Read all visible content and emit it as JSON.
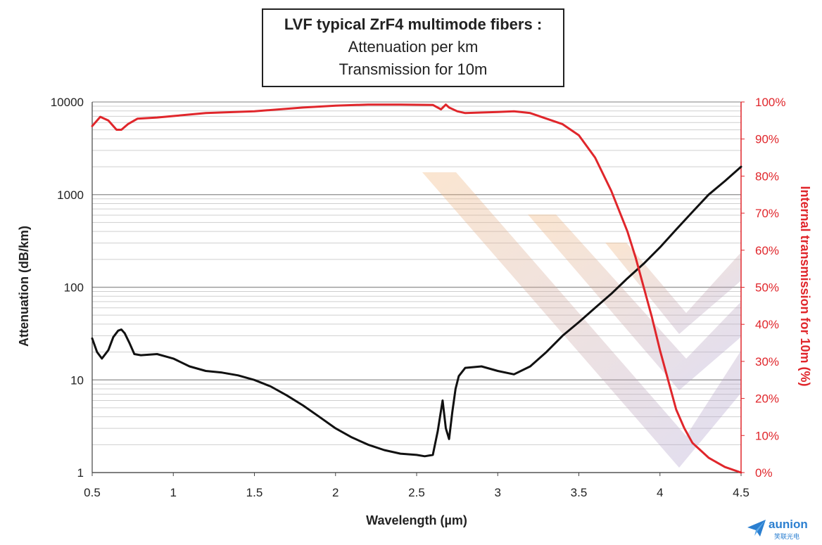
{
  "title": {
    "line1": "LVF typical ZrF4 multimode fibers :",
    "line2": "Attenuation per km",
    "line3": "Transmission for 10m"
  },
  "logo": {
    "name": "aunion",
    "subtitle": "笑联光电"
  },
  "colors": {
    "attenuation": "#111111",
    "transmission": "#e0262b",
    "grid": "#bdbdbd",
    "axis_right": "#e0262b"
  },
  "chart_data": {
    "type": "line",
    "xlabel": "Wavelength (µm)",
    "ylabel_left": "Attenuation (dB/km)",
    "ylabel_right": "Internal transmission for 10m (%)",
    "xlim": [
      0.5,
      4.5
    ],
    "ylim_left": [
      1,
      10000
    ],
    "yscale_left": "log",
    "ylim_right": [
      0,
      100
    ],
    "x_ticks": [
      "0.5",
      "1",
      "1.5",
      "2",
      "2.5",
      "3",
      "3.5",
      "4",
      "4.5"
    ],
    "y_ticks_left": [
      "1",
      "10",
      "100",
      "1000",
      "10000"
    ],
    "y_ticks_right": [
      "0%",
      "10%",
      "20%",
      "30%",
      "40%",
      "50%",
      "60%",
      "70%",
      "80%",
      "90%",
      "100%"
    ],
    "grid": true,
    "series": [
      {
        "axis": "left",
        "x": [
          0.5,
          0.53,
          0.56,
          0.6,
          0.63,
          0.66,
          0.68,
          0.7,
          0.73,
          0.76,
          0.8,
          0.9,
          1.0,
          1.1,
          1.2,
          1.3,
          1.4,
          1.5,
          1.6,
          1.7,
          1.8,
          1.9,
          2.0,
          2.1,
          2.2,
          2.3,
          2.4,
          2.5,
          2.55,
          2.6,
          2.63,
          2.66,
          2.68,
          2.7,
          2.72,
          2.74,
          2.76,
          2.8,
          2.9,
          3.0,
          3.1,
          3.2,
          3.3,
          3.4,
          3.5,
          3.6,
          3.7,
          3.8,
          3.9,
          4.0,
          4.1,
          4.2,
          4.3,
          4.4,
          4.5
        ],
        "values": [
          28,
          20,
          17,
          21,
          29,
          34,
          35,
          32,
          25,
          19,
          18.5,
          19,
          17,
          14,
          12.5,
          12,
          11.2,
          10,
          8.5,
          6.8,
          5.3,
          4,
          3,
          2.4,
          2,
          1.75,
          1.6,
          1.55,
          1.5,
          1.55,
          2.8,
          6,
          3,
          2.3,
          4.5,
          8,
          11,
          13.5,
          14,
          12.5,
          11.5,
          14,
          20,
          30,
          42,
          60,
          85,
          125,
          180,
          270,
          420,
          650,
          1000,
          1400,
          2000
        ]
      },
      {
        "axis": "right",
        "x": [
          0.5,
          0.55,
          0.6,
          0.65,
          0.68,
          0.72,
          0.78,
          0.9,
          1.0,
          1.2,
          1.5,
          1.8,
          2.0,
          2.2,
          2.4,
          2.6,
          2.65,
          2.68,
          2.7,
          2.75,
          2.8,
          3.0,
          3.1,
          3.2,
          3.3,
          3.4,
          3.5,
          3.6,
          3.7,
          3.8,
          3.85,
          3.9,
          3.95,
          4.0,
          4.05,
          4.1,
          4.15,
          4.2,
          4.3,
          4.4,
          4.5
        ],
        "values": [
          93.5,
          96,
          95,
          92.5,
          92.5,
          94,
          95.5,
          95.8,
          96.2,
          97,
          97.5,
          98.5,
          99,
          99.3,
          99.3,
          99.2,
          98,
          99.3,
          98.5,
          97.5,
          97,
          97.3,
          97.5,
          97,
          95.5,
          94,
          91,
          85,
          76,
          65,
          58,
          50,
          42,
          33,
          25,
          17,
          12,
          8,
          4,
          1.5,
          0
        ]
      }
    ]
  }
}
